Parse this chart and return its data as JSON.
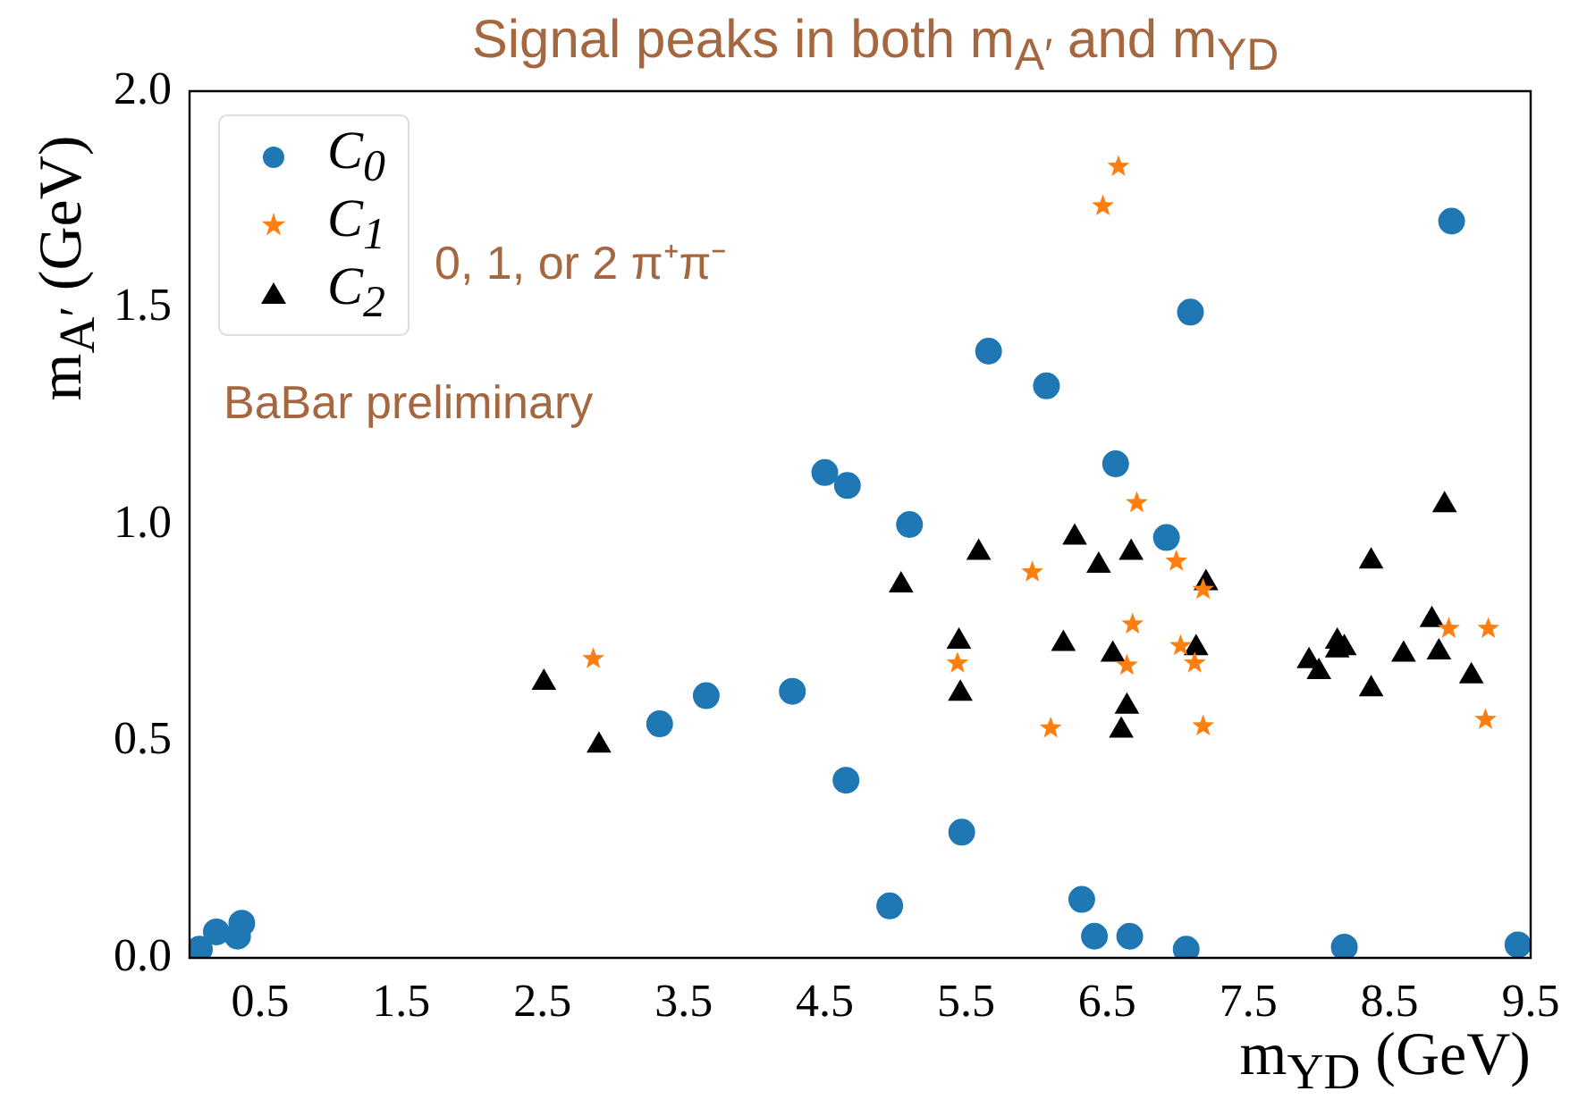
{
  "chart_data": {
    "type": "scatter",
    "title": "Signal peaks in both m$_{A′}$ and m$_{YD}$",
    "xlabel": "m$_{ΥD}$ (GeV)",
    "ylabel": "m$_{A′}$ (GeV)",
    "annotations": [
      "0, 1, or 2 π⁺π⁻",
      "BaBar preliminary"
    ],
    "xlim": [
      0,
      9.5
    ],
    "xticks": [
      0.5,
      1.5,
      2.5,
      3.5,
      4.5,
      5.5,
      6.5,
      7.5,
      8.5,
      9.5
    ],
    "ylim": [
      0,
      2
    ],
    "yticks": [
      {
        "value": 0,
        "label": "0.0"
      },
      0.5,
      {
        "value": 1,
        "label": "1.0"
      },
      1.5,
      {
        "value": 2,
        "label": "2.0"
      }
    ],
    "grid": false,
    "legend": "top left",
    "series": [
      {
        "name": "C$_{0}$",
        "color": "#1f77b4",
        "marker": "circle",
        "x": [
          0.07,
          0.19,
          0.34,
          0.37,
          3.33,
          3.66,
          4.27,
          4.5,
          4.66,
          5.1,
          4.65,
          4.96,
          5.47,
          6.32,
          6.41,
          6.66,
          7.06,
          8.18,
          9.41,
          8.94,
          7.09,
          5.66,
          6.07,
          6.56,
          6.92
        ],
        "values": [
          0.02,
          0.06,
          0.05,
          0.08,
          0.54,
          0.605,
          0.615,
          1.12,
          1.09,
          1.0,
          0.41,
          0.12,
          0.29,
          0.135,
          0.05,
          0.05,
          0.02,
          0.025,
          0.03,
          1.7,
          1.49,
          1.4,
          1.32,
          1.14,
          0.97
        ]
      },
      {
        "name": "C$_{1}$",
        "color": "#ff7f0e",
        "marker": "star",
        "x": [
          2.86,
          5.44,
          5.97,
          6.58,
          6.47,
          6.71,
          6.99,
          7.18,
          6.68,
          6.64,
          7.02,
          7.12,
          6.1,
          7.18,
          8.92,
          9.2,
          9.18
        ],
        "values": [
          0.69,
          0.68,
          0.89,
          1.826,
          1.735,
          1.05,
          0.915,
          0.85,
          0.77,
          0.675,
          0.72,
          0.68,
          0.53,
          0.535,
          0.76,
          0.76,
          0.55
        ]
      },
      {
        "name": "C$_{2}$",
        "color": "#000000",
        "marker": "triangle",
        "x": [
          2.51,
          2.9,
          5.04,
          5.59,
          5.45,
          5.46,
          6.27,
          6.44,
          6.67,
          7.2,
          6.19,
          6.54,
          7.13,
          6.64,
          6.6,
          7.93,
          8.0,
          8.13,
          8.18,
          8.13,
          8.37,
          8.37,
          8.6,
          8.8,
          8.85,
          8.89,
          9.08
        ],
        "values": [
          0.635,
          0.49,
          0.86,
          0.935,
          0.73,
          0.61,
          0.97,
          0.905,
          0.935,
          0.865,
          0.725,
          0.7,
          0.715,
          0.58,
          0.525,
          0.685,
          0.66,
          0.73,
          0.715,
          0.71,
          0.915,
          0.62,
          0.7,
          0.78,
          0.705,
          1.045,
          0.65
        ]
      }
    ]
  }
}
